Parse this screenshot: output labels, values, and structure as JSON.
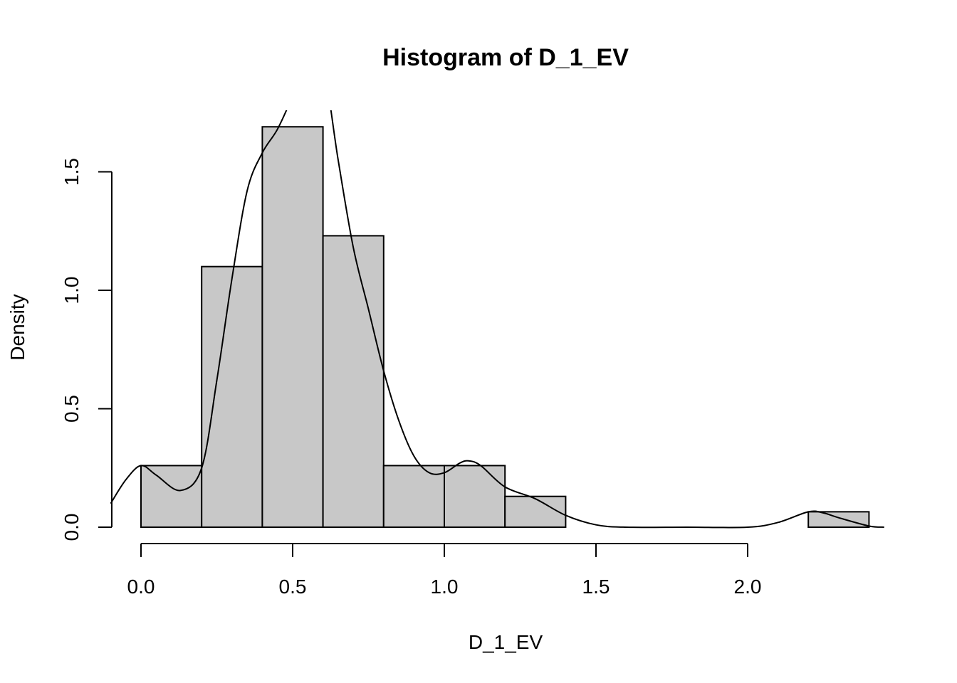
{
  "chart_data": {
    "type": "bar",
    "title": "Histogram of D_1_EV",
    "xlabel": "D_1_EV",
    "ylabel": "Density",
    "bin_edges": [
      0.0,
      0.2,
      0.4,
      0.6,
      0.8,
      1.0,
      1.2,
      1.4,
      1.6,
      1.8,
      2.0,
      2.2,
      2.4
    ],
    "values": [
      0.26,
      1.1,
      1.69,
      1.23,
      0.26,
      0.26,
      0.13,
      0,
      0,
      0,
      0,
      0.065
    ],
    "xlim": [
      -0.1,
      2.45
    ],
    "ylim": [
      0,
      1.75
    ],
    "x_ticks": [
      0.0,
      0.5,
      1.0,
      1.5,
      2.0
    ],
    "x_tick_labels": [
      "0.0",
      "0.5",
      "1.0",
      "1.5",
      "2.0"
    ],
    "y_ticks": [
      0.0,
      0.5,
      1.0,
      1.5
    ],
    "y_tick_labels": [
      "0.0",
      "0.5",
      "1.0",
      "1.5"
    ],
    "bar_color": "#c8c8c8",
    "grid": false,
    "density_curve": {
      "x": [
        -0.1,
        -0.05,
        0.0,
        0.05,
        0.13,
        0.2,
        0.25,
        0.3,
        0.35,
        0.4,
        0.45,
        0.5,
        0.55,
        0.6,
        0.65,
        0.7,
        0.75,
        0.8,
        0.85,
        0.9,
        0.95,
        1.0,
        1.05,
        1.08,
        1.12,
        1.2,
        1.3,
        1.4,
        1.5,
        1.6,
        1.8,
        2.0,
        2.1,
        2.2,
        2.25,
        2.3,
        2.4,
        2.45
      ],
      "y": [
        0.1,
        0.2,
        0.26,
        0.22,
        0.155,
        0.25,
        0.62,
        1.05,
        1.42,
        1.58,
        1.68,
        1.82,
        1.98,
        1.95,
        1.55,
        1.18,
        0.92,
        0.66,
        0.45,
        0.3,
        0.23,
        0.23,
        0.27,
        0.28,
        0.26,
        0.17,
        0.12,
        0.05,
        0.01,
        0.0,
        0.0,
        0.0,
        0.02,
        0.065,
        0.06,
        0.04,
        0.005,
        0.0
      ]
    }
  }
}
